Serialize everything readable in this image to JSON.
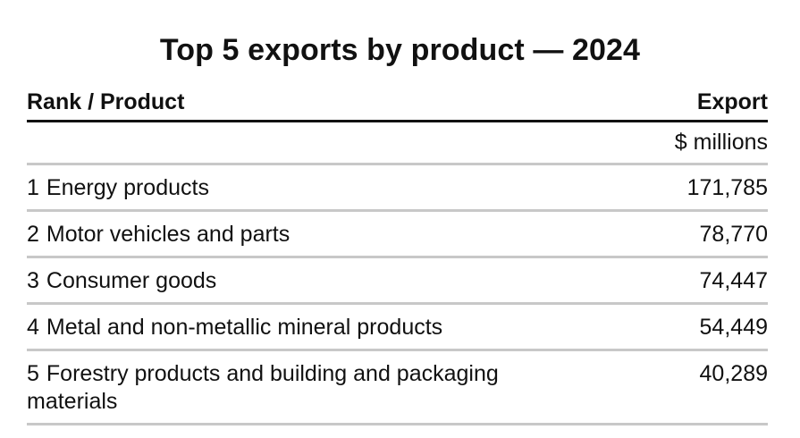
{
  "chart_data": {
    "type": "table",
    "title": "Top 5 exports by product — 2024",
    "columns": [
      "Rank / Product",
      "Export"
    ],
    "units": "$ millions",
    "rows": [
      {
        "rank": "1",
        "product": "Energy products",
        "value": "171,785"
      },
      {
        "rank": "2",
        "product": "Motor vehicles and parts",
        "value": "78,770"
      },
      {
        "rank": "3",
        "product": "Consumer goods",
        "value": "74,447"
      },
      {
        "rank": "4",
        "product": "Metal and non-metallic mineral products",
        "value": "54,449"
      },
      {
        "rank": "5",
        "product": "Forestry products and building and packaging materials",
        "value": "40,289"
      }
    ]
  }
}
